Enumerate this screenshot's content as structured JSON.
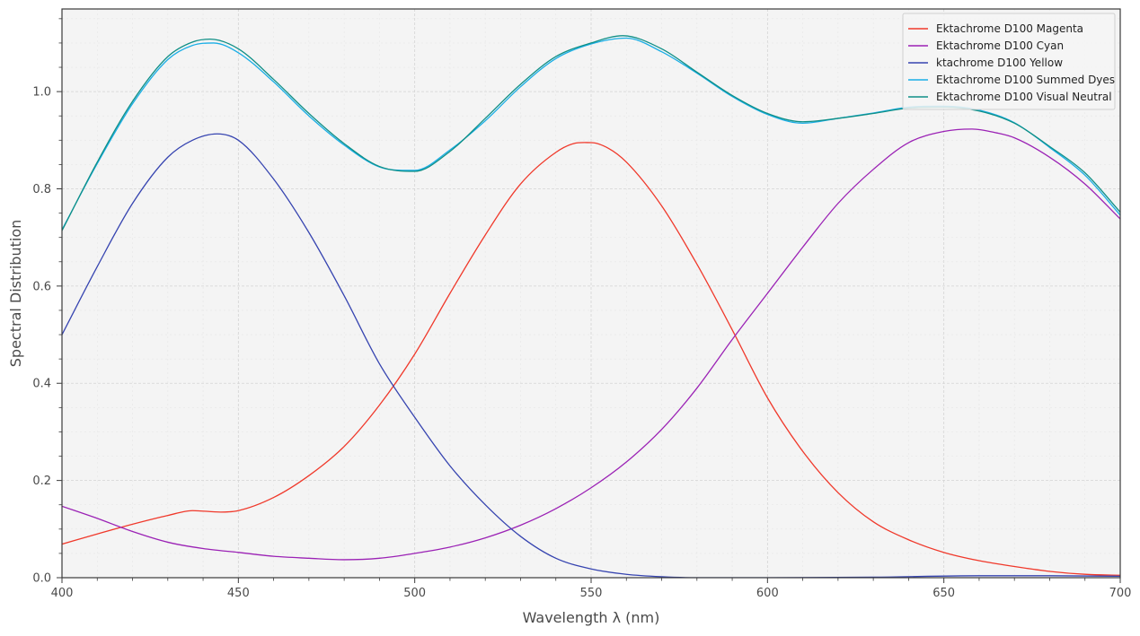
{
  "chart_data": {
    "type": "line",
    "title": "",
    "xlabel": "Wavelength λ (nm)",
    "ylabel": "Spectral Distribution",
    "xlim": [
      400,
      700
    ],
    "ylim": [
      0.0,
      1.17
    ],
    "xticks": [
      400,
      450,
      500,
      550,
      600,
      650,
      700
    ],
    "yticks": [
      0.0,
      0.2,
      0.4,
      0.6,
      0.8,
      1.0
    ],
    "grid": true,
    "legend_position": "upper-right",
    "background": "#f4f4f4",
    "series": [
      {
        "name": "Ektachrome D100 Magenta",
        "color": "#f0392b",
        "x": [
          400,
          410,
          420,
          430,
          437,
          445,
          450,
          460,
          470,
          480,
          490,
          500,
          510,
          520,
          530,
          540,
          545,
          550,
          555,
          560,
          570,
          580,
          590,
          600,
          610,
          620,
          630,
          640,
          650,
          660,
          670,
          680,
          690,
          700
        ],
        "y": [
          0.069,
          0.09,
          0.11,
          0.128,
          0.138,
          0.135,
          0.138,
          0.165,
          0.21,
          0.27,
          0.355,
          0.46,
          0.585,
          0.705,
          0.81,
          0.875,
          0.893,
          0.895,
          0.883,
          0.855,
          0.765,
          0.645,
          0.51,
          0.37,
          0.26,
          0.175,
          0.115,
          0.078,
          0.052,
          0.035,
          0.023,
          0.013,
          0.007,
          0.005
        ]
      },
      {
        "name": "Ektachrome D100 Cyan",
        "color": "#9b22b5",
        "x": [
          400,
          410,
          420,
          430,
          440,
          450,
          460,
          470,
          480,
          490,
          500,
          510,
          520,
          530,
          540,
          550,
          560,
          570,
          580,
          590,
          600,
          610,
          620,
          630,
          640,
          650,
          658,
          665,
          670,
          680,
          690,
          700
        ],
        "y": [
          0.147,
          0.122,
          0.095,
          0.073,
          0.06,
          0.052,
          0.044,
          0.04,
          0.037,
          0.04,
          0.05,
          0.063,
          0.082,
          0.108,
          0.142,
          0.185,
          0.238,
          0.305,
          0.39,
          0.49,
          0.585,
          0.68,
          0.77,
          0.84,
          0.895,
          0.918,
          0.923,
          0.915,
          0.905,
          0.865,
          0.81,
          0.738
        ]
      },
      {
        "name": "ktachrome D100 Yellow",
        "color": "#3644b0",
        "x": [
          400,
          410,
          420,
          430,
          437,
          444,
          450,
          460,
          470,
          480,
          490,
          500,
          510,
          520,
          530,
          540,
          550,
          560,
          570,
          580,
          600,
          630,
          660,
          680,
          700
        ],
        "y": [
          0.5,
          0.64,
          0.77,
          0.865,
          0.9,
          0.913,
          0.9,
          0.82,
          0.71,
          0.58,
          0.44,
          0.33,
          0.23,
          0.15,
          0.085,
          0.04,
          0.018,
          0.007,
          0.002,
          0.0,
          0.0,
          0.001,
          0.004,
          0.004,
          0.003
        ]
      },
      {
        "name": "Ektachrome D100 Summed Dyes",
        "color": "#1aaee6",
        "x": [
          400,
          410,
          420,
          430,
          437,
          443,
          450,
          460,
          470,
          480,
          490,
          500,
          510,
          520,
          530,
          540,
          550,
          560,
          570,
          580,
          590,
          600,
          610,
          620,
          630,
          640,
          650,
          660,
          670,
          680,
          690,
          700
        ],
        "y": [
          0.716,
          0.852,
          0.975,
          1.066,
          1.095,
          1.1,
          1.08,
          1.02,
          0.95,
          0.89,
          0.845,
          0.838,
          0.88,
          0.94,
          1.01,
          1.068,
          1.098,
          1.11,
          1.082,
          1.038,
          0.99,
          0.953,
          0.935,
          0.945,
          0.956,
          0.968,
          0.97,
          0.962,
          0.936,
          0.885,
          0.828,
          0.746
        ]
      },
      {
        "name": "Ektachrome D100 Visual Neutral",
        "color": "#0f8f86",
        "x": [
          400,
          410,
          420,
          430,
          437,
          442,
          450,
          460,
          470,
          480,
          490,
          500,
          510,
          520,
          530,
          540,
          550,
          559,
          570,
          580,
          590,
          600,
          610,
          620,
          630,
          640,
          650,
          660,
          670,
          680,
          690,
          700
        ],
        "y": [
          0.714,
          0.855,
          0.98,
          1.072,
          1.102,
          1.108,
          1.088,
          1.025,
          0.955,
          0.893,
          0.846,
          0.836,
          0.877,
          0.945,
          1.015,
          1.072,
          1.1,
          1.115,
          1.088,
          1.04,
          0.992,
          0.955,
          0.938,
          0.945,
          0.955,
          0.966,
          0.968,
          0.96,
          0.935,
          0.887,
          0.833,
          0.752
        ]
      }
    ]
  }
}
